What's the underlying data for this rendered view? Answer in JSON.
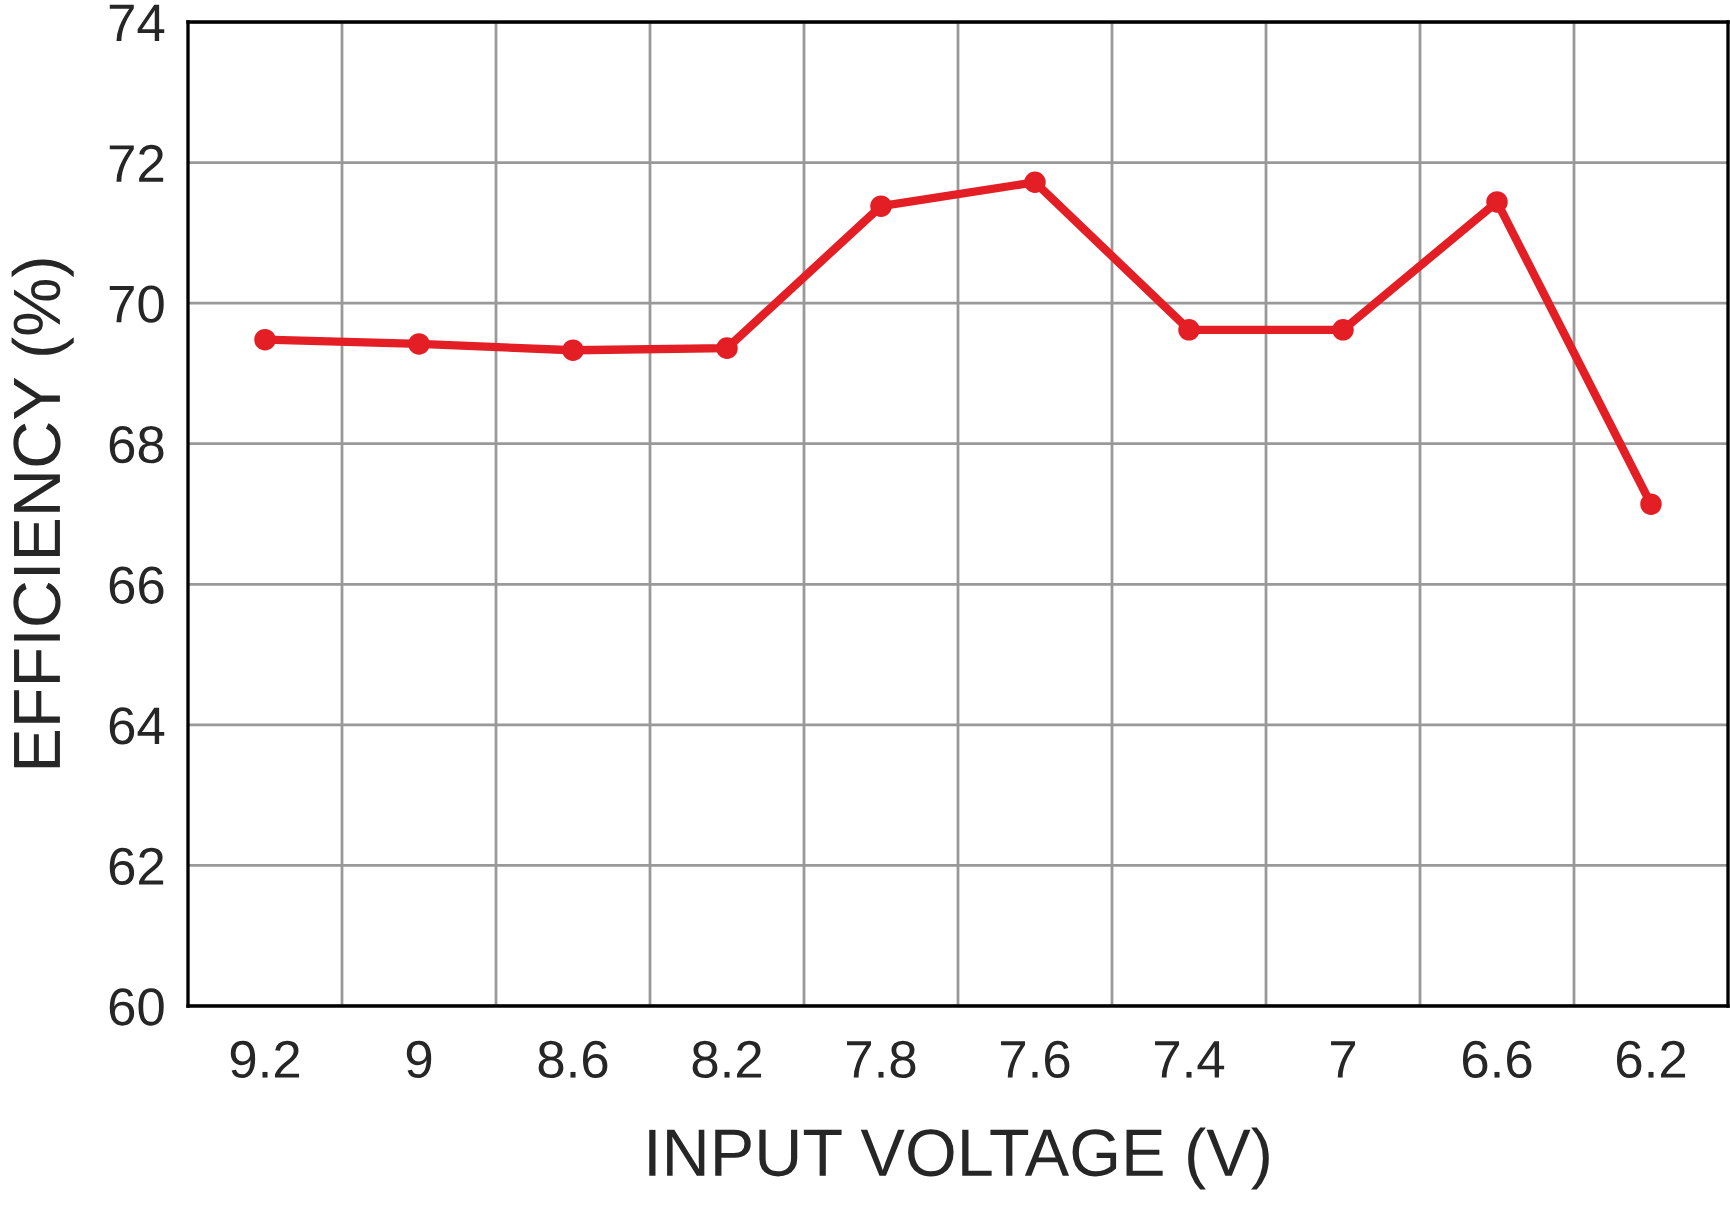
{
  "chart_data": {
    "type": "line",
    "xlabel": "INPUT VOLTAGE (V)",
    "ylabel": "EFFICIENCY (%)",
    "categories": [
      "9.2",
      "9",
      "8.6",
      "8.2",
      "7.8",
      "7.6",
      "7.4",
      "7",
      "6.6",
      "6.2"
    ],
    "series": [
      {
        "color": "#e31e24",
        "values": [
          69.48,
          69.42,
          69.33,
          69.36,
          71.38,
          71.72,
          69.62,
          69.62,
          71.44,
          67.14
        ]
      }
    ],
    "ylim": [
      60,
      74
    ],
    "yticks": [
      60,
      62,
      64,
      66,
      68,
      70,
      72,
      74
    ],
    "grid": true,
    "marker": "circle",
    "line_style": "solid"
  }
}
